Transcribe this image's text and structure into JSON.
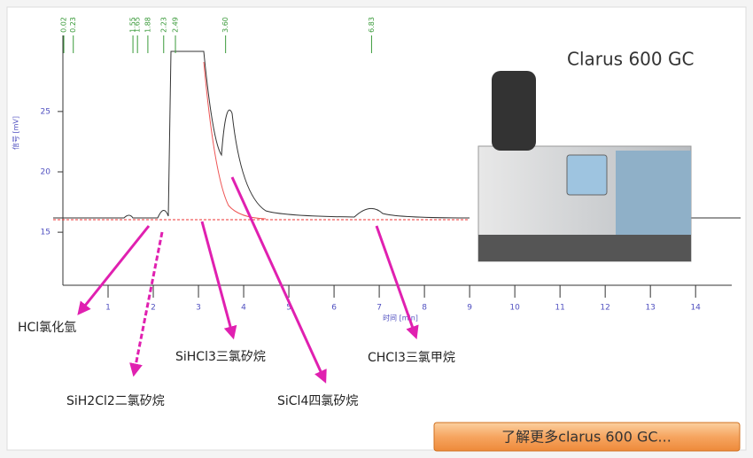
{
  "header": {
    "title": "Clarus 600 GC"
  },
  "chromatogram": {
    "y_axis_label": "信号 [mV]",
    "x_axis_label": "时间 [min]",
    "xlim": [
      0,
      14.8
    ],
    "ylim": [
      10.9,
      31.3
    ],
    "xticks": [
      1,
      2,
      3,
      4,
      5,
      6,
      7,
      8,
      9,
      10,
      11,
      12,
      13,
      14
    ],
    "yticks": [
      15,
      20,
      25
    ],
    "peak_times": [
      0.02,
      0.23,
      1.55,
      1.65,
      1.88,
      2.23,
      2.49,
      {
        "value": 3.6,
        "label": "3.60"
      },
      6.83
    ]
  },
  "annotations": [
    "HCl氯化氫",
    "SiH2Cl2二氯矽烷",
    "SiHCl3三氯矽烷",
    "SiCl4四氯矽烷",
    "CHCl3三氯甲烷"
  ],
  "button": {
    "label": "了解更多clarus 600 GC..."
  }
}
